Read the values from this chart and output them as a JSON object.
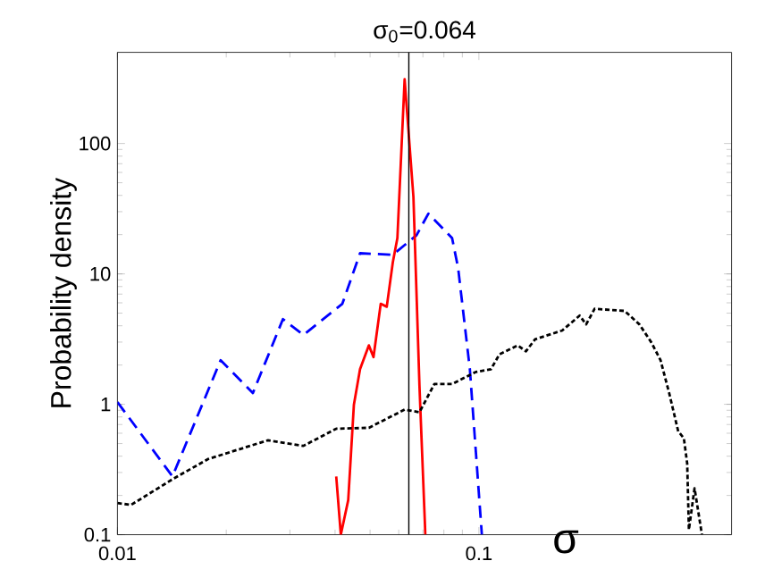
{
  "chart_data": {
    "type": "line",
    "title": "σ$_{0}$=0.064",
    "xlabel": "σ",
    "ylabel": "Probability density",
    "log": "xy",
    "xlim": [
      0.01,
      0.5
    ],
    "ylim": [
      0.1,
      500
    ],
    "xticks": [
      0.01,
      0.1
    ],
    "yticks": [
      0.1,
      1,
      10,
      100
    ],
    "grid": false,
    "ref_lines": [
      {
        "axis": "x",
        "value": 0.064,
        "color": "#000000"
      }
    ],
    "series": [
      {
        "color": "#0000ff",
        "line_style": "dashed",
        "x": [
          0.01,
          0.0142,
          0.0193,
          0.0237,
          0.0287,
          0.0327,
          0.0419,
          0.0469,
          0.0578,
          0.0672,
          0.0725,
          0.0843,
          0.0876,
          0.0944,
          0.1019
        ],
        "values": [
          1.04,
          0.28,
          2.18,
          1.22,
          4.5,
          3.4,
          5.9,
          14.4,
          14,
          19.8,
          29,
          18.8,
          11.1,
          1.86,
          0.1
        ]
      },
      {
        "color": "#ff0000",
        "line_style": "solid",
        "x": [
          0.0403,
          0.0415,
          0.0435,
          0.0451,
          0.0469,
          0.0496,
          0.0511,
          0.0535,
          0.0556,
          0.0578,
          0.0595,
          0.0623,
          0.0659,
          0.0685,
          0.0711
        ],
        "values": [
          0.28,
          0.1,
          0.184,
          0.995,
          1.86,
          2.83,
          2.3,
          5.9,
          5.6,
          12.3,
          18.8,
          311,
          39,
          1.36,
          0.1
        ]
      },
      {
        "color": "#000000",
        "line_style": "dotted",
        "x": [
          0.01,
          0.0109,
          0.0142,
          0.0178,
          0.0261,
          0.0327,
          0.0403,
          0.0496,
          0.0623,
          0.0685,
          0.0753,
          0.0843,
          0.098,
          0.108,
          0.114,
          0.128,
          0.135,
          0.143,
          0.17,
          0.19,
          0.198,
          0.209,
          0.253,
          0.278,
          0.3,
          0.318,
          0.336,
          0.356,
          0.369,
          0.377,
          0.381,
          0.395,
          0.414
        ],
        "values": [
          0.175,
          0.169,
          0.266,
          0.38,
          0.53,
          0.48,
          0.65,
          0.66,
          0.91,
          0.87,
          1.43,
          1.43,
          1.77,
          1.86,
          2.42,
          2.83,
          2.55,
          3.15,
          3.68,
          4.79,
          4.1,
          5.4,
          5.2,
          4.1,
          2.98,
          2.18,
          1.22,
          0.62,
          0.55,
          0.35,
          0.109,
          0.227,
          0.1
        ]
      }
    ]
  }
}
